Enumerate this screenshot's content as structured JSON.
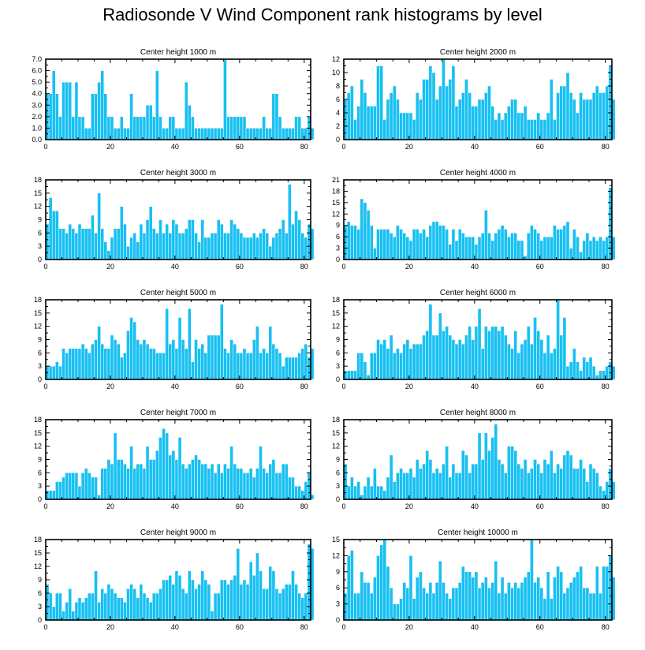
{
  "title": "Radiosonde V Wind Component rank histograms by level",
  "colors": {
    "bar": "#18c0f2",
    "bar_edge": "#ffffff",
    "axis": "#000000"
  },
  "chart_data": [
    {
      "type": "bar",
      "title": "Center height 1000 m",
      "xlim": [
        0,
        82
      ],
      "ylim": [
        0,
        7
      ],
      "xticks": [
        0,
        20,
        40,
        60,
        80
      ],
      "yticks": [
        0.0,
        1.0,
        2.0,
        3.0,
        4.0,
        5.0,
        6.0,
        7.0
      ],
      "ytick_format": "%.1f",
      "values": [
        4,
        4,
        6,
        4,
        2,
        5,
        5,
        5,
        2,
        5,
        2,
        2,
        1,
        1,
        4,
        4,
        5,
        6,
        4,
        2,
        2,
        1,
        1,
        2,
        1,
        1,
        4,
        2,
        2,
        2,
        2,
        3,
        3,
        2,
        6,
        2,
        1,
        1,
        2,
        2,
        1,
        1,
        1,
        5,
        3,
        2,
        1,
        1,
        1,
        1,
        1,
        1,
        1,
        1,
        1,
        7,
        2,
        2,
        2,
        2,
        2,
        2,
        1,
        1,
        1,
        1,
        1,
        2,
        1,
        1,
        4,
        4,
        2,
        1,
        1,
        1,
        1,
        2,
        2,
        1,
        1,
        2,
        1
      ]
    },
    {
      "type": "bar",
      "title": "Center height 2000 m",
      "xlim": [
        0,
        82
      ],
      "ylim": [
        0,
        12
      ],
      "xticks": [
        0,
        20,
        40,
        60,
        80
      ],
      "yticks": [
        0,
        2,
        4,
        6,
        8,
        10,
        12
      ],
      "values": [
        6,
        7,
        8,
        3,
        5,
        9,
        7,
        5,
        5,
        5,
        11,
        11,
        3,
        6,
        7,
        8,
        6,
        4,
        4,
        4,
        4,
        3,
        7,
        6,
        9,
        9,
        11,
        10,
        6,
        8,
        12,
        8,
        9,
        11,
        5,
        6,
        7,
        9,
        7,
        5,
        5,
        6,
        6,
        7,
        8,
        5,
        3,
        4,
        3,
        4,
        5,
        6,
        6,
        4,
        4,
        5,
        3,
        3,
        3,
        4,
        3,
        3,
        4,
        9,
        3,
        7,
        8,
        8,
        10,
        7,
        6,
        4,
        7,
        6,
        6,
        6,
        7,
        8,
        7,
        7,
        8,
        11,
        6
      ]
    },
    {
      "type": "bar",
      "title": "Center height 3000 m",
      "xlim": [
        0,
        82
      ],
      "ylim": [
        0,
        18
      ],
      "xticks": [
        0,
        20,
        40,
        60,
        80
      ],
      "yticks": [
        0,
        3,
        6,
        9,
        12,
        15,
        18
      ],
      "values": [
        8,
        14,
        11,
        11,
        7,
        7,
        6,
        8,
        7,
        6,
        8,
        7,
        7,
        7,
        10,
        6,
        15,
        7,
        4,
        2,
        5,
        7,
        7,
        12,
        8,
        3,
        5,
        6,
        4,
        8,
        6,
        9,
        12,
        7,
        6,
        9,
        6,
        8,
        6,
        9,
        8,
        6,
        6,
        7,
        9,
        9,
        6,
        4,
        9,
        5,
        5,
        6,
        6,
        9,
        8,
        6,
        6,
        9,
        8,
        7,
        6,
        5,
        5,
        5,
        6,
        5,
        6,
        7,
        6,
        3,
        5,
        6,
        7,
        9,
        6,
        17,
        8,
        11,
        9,
        6,
        5,
        8,
        7
      ]
    },
    {
      "type": "bar",
      "title": "Center height 4000 m",
      "xlim": [
        0,
        82
      ],
      "ylim": [
        0,
        21
      ],
      "xticks": [
        0,
        20,
        40,
        60,
        80
      ],
      "yticks": [
        0,
        3,
        6,
        9,
        12,
        15,
        18,
        21
      ],
      "values": [
        9,
        10,
        9,
        9,
        8,
        16,
        15,
        13,
        9,
        3,
        8,
        8,
        8,
        8,
        7,
        6,
        9,
        8,
        7,
        6,
        5,
        8,
        8,
        7,
        8,
        6,
        9,
        10,
        10,
        9,
        9,
        8,
        4,
        8,
        5,
        8,
        7,
        6,
        6,
        6,
        4,
        6,
        7,
        13,
        7,
        5,
        7,
        8,
        9,
        8,
        6,
        7,
        7,
        5,
        5,
        1,
        7,
        9,
        8,
        7,
        5,
        6,
        6,
        6,
        9,
        8,
        8,
        9,
        10,
        3,
        8,
        6,
        2,
        5,
        7,
        5,
        6,
        5,
        6,
        5,
        6,
        19,
        6
      ]
    },
    {
      "type": "bar",
      "title": "Center height 5000 m",
      "xlim": [
        0,
        82
      ],
      "ylim": [
        0,
        18
      ],
      "xticks": [
        0,
        20,
        40,
        60,
        80
      ],
      "yticks": [
        0,
        3,
        6,
        9,
        12,
        15,
        18
      ],
      "values": [
        3,
        3,
        3,
        4,
        3,
        7,
        6,
        7,
        7,
        7,
        7,
        8,
        7,
        6,
        8,
        9,
        12,
        8,
        7,
        7,
        10,
        9,
        8,
        5,
        6,
        11,
        14,
        13,
        9,
        8,
        9,
        8,
        7,
        7,
        6,
        6,
        6,
        16,
        8,
        9,
        7,
        14,
        9,
        7,
        16,
        4,
        9,
        7,
        8,
        6,
        10,
        10,
        10,
        10,
        17,
        7,
        6,
        9,
        8,
        6,
        6,
        7,
        6,
        6,
        9,
        12,
        6,
        7,
        6,
        12,
        8,
        7,
        6,
        3,
        5,
        5,
        5,
        5,
        6,
        7,
        8,
        5,
        7
      ]
    },
    {
      "type": "bar",
      "title": "Center height 6000 m",
      "xlim": [
        0,
        82
      ],
      "ylim": [
        0,
        18
      ],
      "xticks": [
        0,
        20,
        40,
        60,
        80
      ],
      "yticks": [
        0,
        3,
        6,
        9,
        12,
        15,
        18
      ],
      "values": [
        2,
        2,
        2,
        2,
        6,
        6,
        4,
        1,
        6,
        6,
        9,
        8,
        9,
        7,
        10,
        6,
        7,
        6,
        8,
        9,
        7,
        8,
        8,
        8,
        10,
        11,
        17,
        10,
        10,
        15,
        11,
        12,
        10,
        9,
        8,
        9,
        8,
        10,
        12,
        9,
        12,
        16,
        7,
        12,
        11,
        12,
        12,
        11,
        12,
        10,
        8,
        7,
        11,
        6,
        8,
        9,
        12,
        8,
        14,
        11,
        9,
        6,
        10,
        6,
        7,
        18,
        10,
        14,
        3,
        4,
        7,
        4,
        2,
        5,
        4,
        5,
        3,
        1,
        2,
        2,
        3,
        4,
        3
      ]
    },
    {
      "type": "bar",
      "title": "Center height 7000 m",
      "xlim": [
        0,
        82
      ],
      "ylim": [
        0,
        18
      ],
      "xticks": [
        0,
        20,
        40,
        60,
        80
      ],
      "yticks": [
        0,
        3,
        6,
        9,
        12,
        15,
        18
      ],
      "values": [
        2,
        2,
        2,
        4,
        4,
        5,
        6,
        6,
        6,
        6,
        3,
        6,
        7,
        6,
        5,
        5,
        1,
        7,
        7,
        9,
        8,
        15,
        9,
        9,
        8,
        7,
        12,
        7,
        8,
        8,
        7,
        12,
        9,
        9,
        11,
        14,
        16,
        15,
        10,
        11,
        9,
        14,
        8,
        7,
        8,
        9,
        10,
        9,
        8,
        8,
        7,
        8,
        6,
        8,
        6,
        8,
        7,
        12,
        8,
        7,
        7,
        6,
        6,
        7,
        5,
        7,
        12,
        7,
        6,
        8,
        9,
        6,
        6,
        8,
        8,
        5,
        5,
        3,
        3,
        2,
        4,
        6,
        1
      ]
    },
    {
      "type": "bar",
      "title": "Center height 8000 m",
      "xlim": [
        0,
        82
      ],
      "ylim": [
        0,
        18
      ],
      "xticks": [
        0,
        20,
        40,
        60,
        80
      ],
      "yticks": [
        0,
        3,
        6,
        9,
        12,
        15,
        18
      ],
      "values": [
        8,
        3,
        5,
        3,
        4,
        1,
        3,
        5,
        3,
        7,
        3,
        3,
        2,
        5,
        10,
        4,
        6,
        7,
        6,
        6,
        7,
        5,
        9,
        7,
        8,
        11,
        9,
        6,
        7,
        6,
        8,
        12,
        5,
        8,
        6,
        6,
        11,
        10,
        6,
        8,
        8,
        15,
        9,
        15,
        11,
        14,
        17,
        9,
        8,
        6,
        12,
        12,
        11,
        8,
        7,
        9,
        6,
        7,
        9,
        8,
        6,
        9,
        8,
        11,
        6,
        8,
        7,
        10,
        11,
        10,
        7,
        7,
        9,
        7,
        4,
        8,
        7,
        6,
        3,
        2,
        4,
        7,
        4
      ]
    },
    {
      "type": "bar",
      "title": "Center height 9000 m",
      "xlim": [
        0,
        82
      ],
      "ylim": [
        0,
        18
      ],
      "xticks": [
        0,
        20,
        40,
        60,
        80
      ],
      "yticks": [
        0,
        3,
        6,
        9,
        12,
        15,
        18
      ],
      "values": [
        8,
        6,
        3,
        6,
        6,
        2,
        4,
        7,
        2,
        4,
        5,
        4,
        5,
        6,
        6,
        11,
        4,
        7,
        6,
        8,
        7,
        6,
        5,
        5,
        4,
        7,
        8,
        7,
        5,
        8,
        6,
        5,
        4,
        6,
        6,
        7,
        9,
        9,
        10,
        8,
        11,
        10,
        7,
        6,
        11,
        9,
        7,
        8,
        11,
        9,
        8,
        2,
        6,
        6,
        9,
        9,
        8,
        9,
        10,
        16,
        8,
        9,
        8,
        13,
        10,
        15,
        11,
        7,
        7,
        12,
        11,
        7,
        6,
        7,
        8,
        8,
        11,
        8,
        6,
        5,
        6,
        17,
        16
      ]
    },
    {
      "type": "bar",
      "title": "Center height 10000 m",
      "xlim": [
        0,
        82
      ],
      "ylim": [
        0,
        15
      ],
      "xticks": [
        0,
        20,
        40,
        60,
        80
      ],
      "yticks": [
        0,
        3,
        6,
        9,
        12,
        15
      ],
      "values": [
        5,
        12,
        13,
        5,
        5,
        9,
        7,
        7,
        5,
        8,
        12,
        14,
        15,
        10,
        6,
        3,
        3,
        4,
        7,
        6,
        12,
        4,
        8,
        9,
        6,
        5,
        7,
        5,
        7,
        11,
        7,
        5,
        4,
        6,
        6,
        7,
        10,
        9,
        9,
        8,
        9,
        6,
        7,
        8,
        6,
        7,
        11,
        5,
        8,
        5,
        7,
        6,
        7,
        6,
        7,
        8,
        9,
        15,
        7,
        8,
        6,
        4,
        9,
        4,
        8,
        10,
        9,
        5,
        6,
        7,
        8,
        9,
        10,
        6,
        6,
        5,
        5,
        10,
        5,
        10,
        10,
        12,
        8
      ]
    }
  ]
}
